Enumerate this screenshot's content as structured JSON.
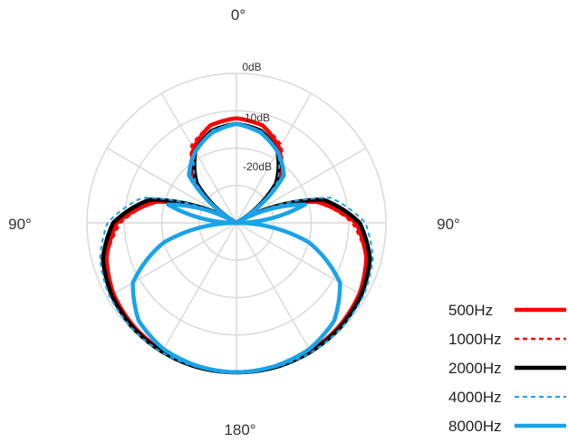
{
  "chart_data": {
    "type": "polar",
    "angle_labels": [
      "0°",
      "90°",
      "90°",
      "180°"
    ],
    "ring_labels": [
      "0dB",
      "-10dB",
      "-20dB"
    ],
    "rlim_db": [
      -40,
      0
    ],
    "grid": true,
    "legend_position": "bottom-right",
    "angles_deg": [
      0,
      15,
      30,
      45,
      60,
      75,
      90,
      105,
      120,
      135,
      150,
      165,
      180
    ],
    "series": [
      {
        "name": "500Hz",
        "color": "#ff0000",
        "style": "solid",
        "width": 4.5,
        "db": [
          -12,
          -13,
          -17,
          -24,
          -40,
          -18,
          -8,
          -4,
          -2,
          -1,
          -0.4,
          -0.1,
          0
        ]
      },
      {
        "name": "1000Hz",
        "color": "#ff0000",
        "style": "dashed",
        "width": 2.5,
        "db": [
          -12,
          -13,
          -16,
          -24,
          -40,
          -18,
          -9,
          -4,
          -2,
          -1,
          -0.4,
          -0.1,
          0
        ]
      },
      {
        "name": "2000Hz",
        "color": "#000000",
        "style": "solid",
        "width": 4.5,
        "db": [
          -13.5,
          -14.5,
          -18,
          -25,
          -40,
          -16,
          -7,
          -3,
          -1.4,
          -0.6,
          -0.2,
          0,
          0
        ]
      },
      {
        "name": "4000Hz",
        "color": "#1aa3e8",
        "style": "dashed",
        "width": 2,
        "db": [
          -13.5,
          -14.5,
          -18,
          -24.5,
          -40,
          -14,
          -5.5,
          -2.2,
          -0.8,
          -0.3,
          0,
          0,
          0
        ]
      },
      {
        "name": "8000Hz",
        "color": "#1aa3e8",
        "style": "solid",
        "width": 4.5,
        "db": [
          -13.5,
          -15,
          -18,
          -22,
          -40,
          -21,
          -40,
          -20,
          -8,
          -3,
          -1,
          -0.3,
          0
        ]
      }
    ]
  }
}
